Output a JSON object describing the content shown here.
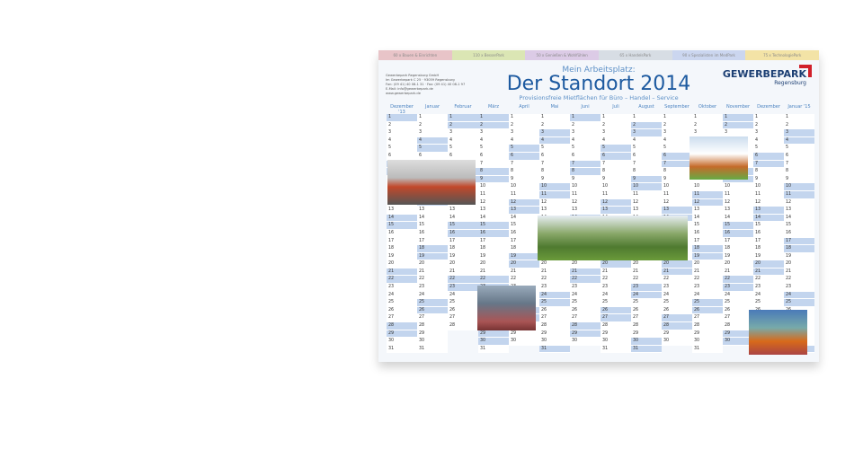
{
  "categories": [
    {
      "label": "60 x Bauen & Einrichten",
      "color": "#e8c4c8"
    },
    {
      "label": "110 x BesserPark",
      "color": "#dbe6b4"
    },
    {
      "label": "50 x Genießen & Wohlfühlen",
      "color": "#dccbe6"
    },
    {
      "label": "65 x HandelsPark",
      "color": "#d7dde4"
    },
    {
      "label": "90 x Spezialisten im MedPark",
      "color": "#cbd6ef"
    },
    {
      "label": "75 x TechnologiePark",
      "color": "#f3e3a6"
    }
  ],
  "address": [
    "Gewerbepark Regensburg GmbH",
    "Im Gewerbepark C 25 · 93059 Regensburg",
    "Fon: (09 41) 40 08-1 31 · Fax: (09 41) 40 08-1 97",
    "E-Mail: info@gewerbepark.de",
    "www.gewerbepark.de"
  ],
  "header": {
    "kicker": "Mein Arbeitsplatz:",
    "title": "Der Standort 2014",
    "subtitle": "Provisionsfreie Mietflächen für Büro – Handel – Service"
  },
  "logo": {
    "name": "GEWERBEPARK",
    "city": "Regensburg"
  },
  "months": [
    {
      "label": "Dezember '13",
      "y": 2013,
      "m": 11
    },
    {
      "label": "Januar",
      "y": 2014,
      "m": 0
    },
    {
      "label": "Februar",
      "y": 2014,
      "m": 1
    },
    {
      "label": "März",
      "y": 2014,
      "m": 2
    },
    {
      "label": "April",
      "y": 2014,
      "m": 3
    },
    {
      "label": "Mai",
      "y": 2014,
      "m": 4
    },
    {
      "label": "Juni",
      "y": 2014,
      "m": 5
    },
    {
      "label": "Juli",
      "y": 2014,
      "m": 6
    },
    {
      "label": "August",
      "y": 2014,
      "m": 7
    },
    {
      "label": "September",
      "y": 2014,
      "m": 8
    },
    {
      "label": "Oktober",
      "y": 2014,
      "m": 9
    },
    {
      "label": "November",
      "y": 2014,
      "m": 10
    },
    {
      "label": "Dezember",
      "y": 2014,
      "m": 11
    },
    {
      "label": "Januar '15",
      "y": 2015,
      "m": 0
    }
  ]
}
